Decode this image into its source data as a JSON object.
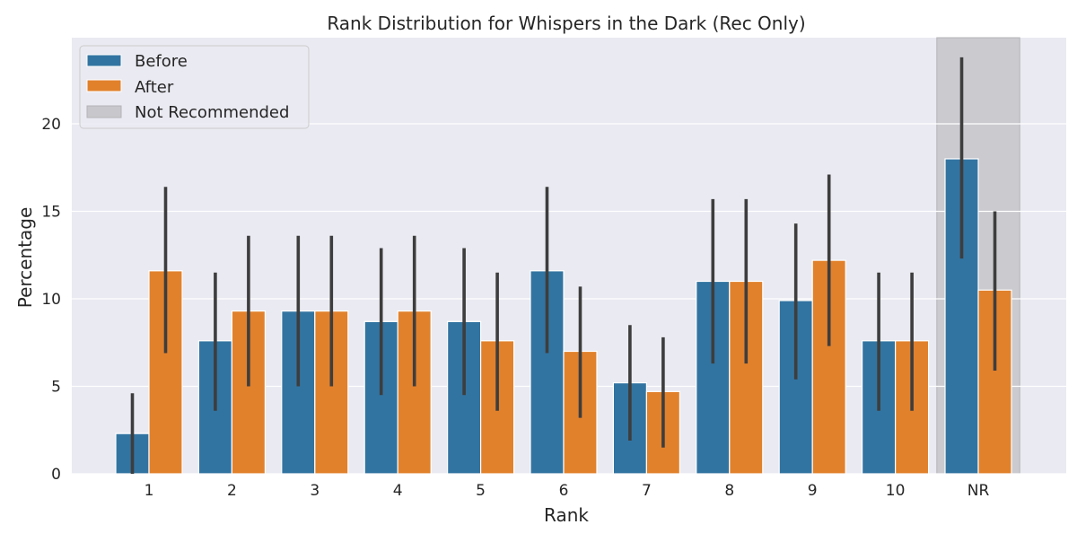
{
  "chart_data": {
    "type": "bar",
    "title": "Rank Distribution for Whispers in the Dark (Rec Only)",
    "xlabel": "Rank",
    "ylabel": "Percentage",
    "categories": [
      "1",
      "2",
      "3",
      "4",
      "5",
      "6",
      "7",
      "8",
      "9",
      "10",
      "NR"
    ],
    "ylim": [
      0,
      25
    ],
    "yticks": [
      0,
      5,
      10,
      15,
      20
    ],
    "grid": true,
    "legend_position": "top-left",
    "series": [
      {
        "name": "Before",
        "color": "#3274a1",
        "values": [
          2.3,
          7.6,
          9.3,
          8.7,
          8.7,
          11.6,
          5.2,
          11.0,
          9.9,
          7.6,
          18.0
        ],
        "ci_low": [
          0.0,
          3.6,
          5.0,
          4.5,
          4.5,
          6.9,
          1.9,
          6.3,
          5.4,
          3.6,
          12.3
        ],
        "ci_high": [
          4.6,
          11.5,
          13.6,
          12.9,
          12.9,
          16.4,
          8.5,
          15.7,
          14.3,
          11.5,
          23.8
        ]
      },
      {
        "name": "After",
        "color": "#e1812c",
        "values": [
          11.6,
          9.3,
          9.3,
          9.3,
          7.6,
          7.0,
          4.7,
          11.0,
          12.2,
          7.6,
          10.5
        ],
        "ci_low": [
          6.9,
          5.0,
          5.0,
          5.0,
          3.6,
          3.2,
          1.5,
          6.3,
          7.3,
          3.6,
          5.9
        ],
        "ci_high": [
          16.4,
          13.6,
          13.6,
          13.6,
          11.5,
          10.7,
          7.8,
          15.7,
          17.1,
          11.5,
          15.0
        ]
      }
    ],
    "highlight": {
      "category": "NR",
      "label": "Not Recommended",
      "color": "#c8c8cc"
    }
  }
}
